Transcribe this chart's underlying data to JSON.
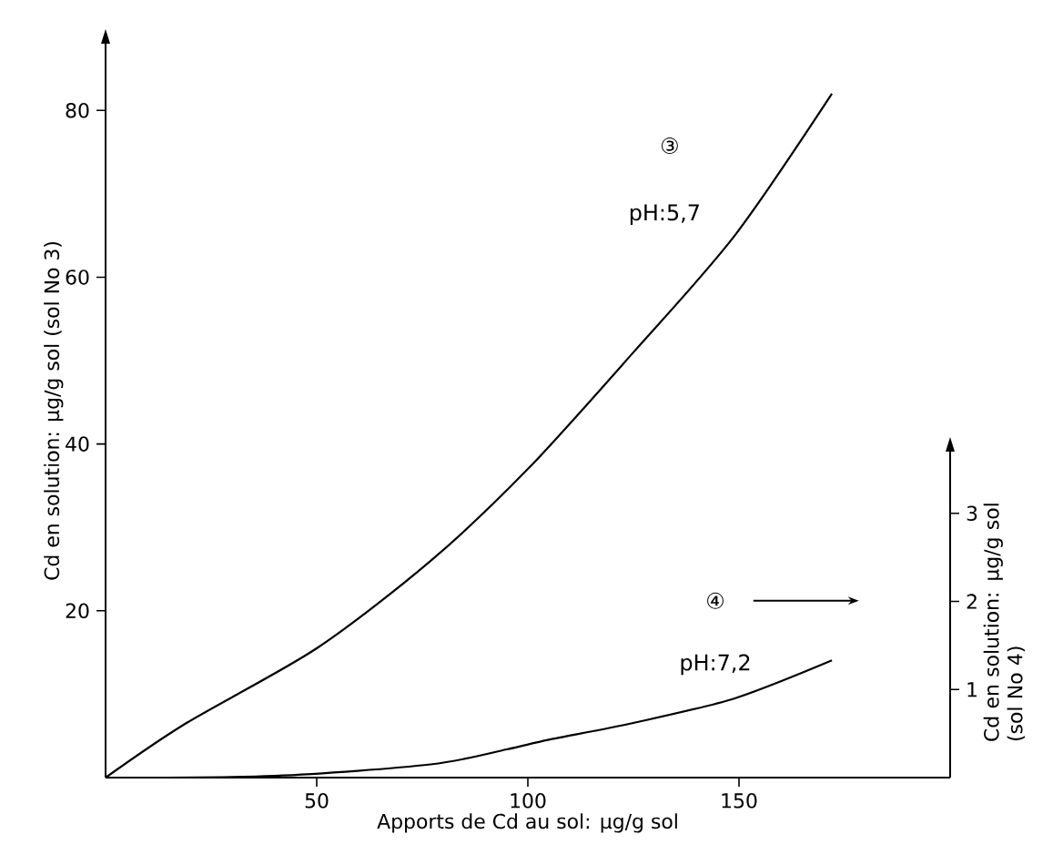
{
  "chart_data": {
    "type": "line",
    "xlabel": "Apports de Cd au sol: µg/g sol",
    "ylabel": "Cd en solution: µg/g sol (sol No 3)",
    "y2label": "Cd en solution: µg/g sol (sol No 4)",
    "xlim": [
      0,
      200
    ],
    "ylim": [
      0,
      88
    ],
    "y2lim": [
      0,
      3.7
    ],
    "xticks": [
      50,
      100,
      150
    ],
    "yticks": [
      20,
      40,
      60,
      80
    ],
    "y2ticks": [
      1,
      2,
      3
    ],
    "series": [
      {
        "color": "#000000",
        "x": [
          0,
          19,
          50,
          77,
          100,
          125,
          149,
          172
        ],
        "values": [
          0,
          6.5,
          15.5,
          26,
          37,
          51,
          65,
          82
        ]
      },
      {
        "color": "#000000",
        "axis": "y2",
        "x": [
          0,
          40,
          77,
          95,
          105,
          125,
          149,
          172
        ],
        "values": [
          0,
          0.02,
          0.15,
          0.32,
          0.43,
          0.62,
          0.9,
          1.33
        ]
      }
    ],
    "annotations": [
      "③",
      "pH:5,7",
      "④",
      "pH:7,2"
    ],
    "grid": false,
    "marker": "none",
    "line_style": "solid"
  }
}
